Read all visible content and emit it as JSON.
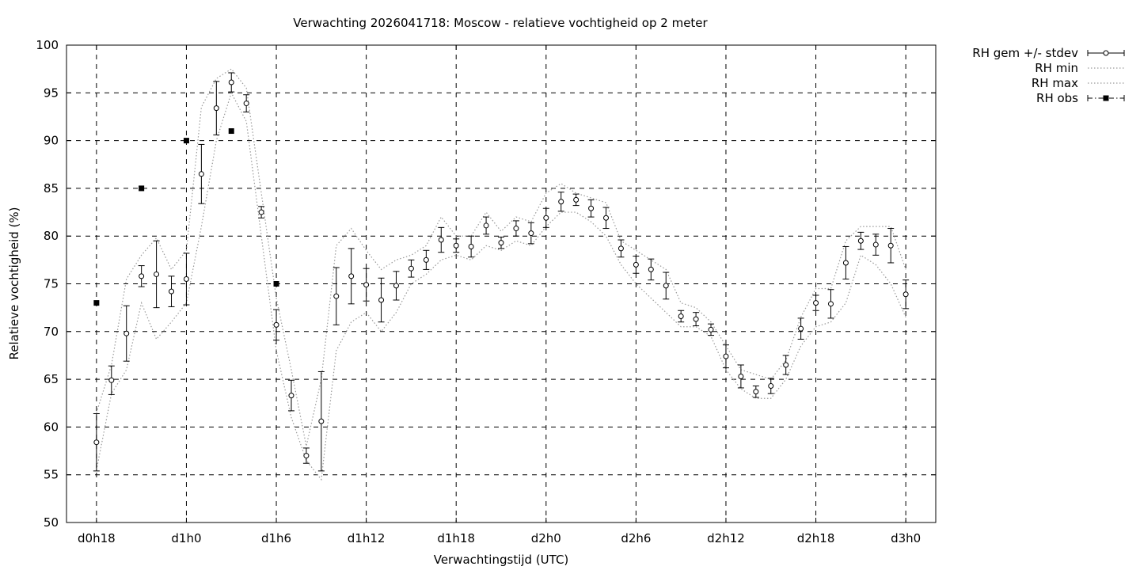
{
  "chart_data": {
    "type": "line",
    "title": "Verwachting 2026041718: Moscow - relatieve vochtigheid op 2 meter",
    "xlabel": "Verwachtingstijd (UTC)",
    "ylabel": "Relatieve vochtigheid (%)",
    "ylim": [
      50,
      100
    ],
    "xlim": [
      -2,
      56
    ],
    "x_unit": "hours since d0h18",
    "grid": true,
    "legend_position": "outside-right-top",
    "x_ticks": [
      {
        "x": 0,
        "label": "d0h18"
      },
      {
        "x": 6,
        "label": "d1h0"
      },
      {
        "x": 12,
        "label": "d1h6"
      },
      {
        "x": 18,
        "label": "d1h12"
      },
      {
        "x": 24,
        "label": "d1h18"
      },
      {
        "x": 30,
        "label": "d2h0"
      },
      {
        "x": 36,
        "label": "d2h6"
      },
      {
        "x": 42,
        "label": "d2h12"
      },
      {
        "x": 48,
        "label": "d2h18"
      },
      {
        "x": 54,
        "label": "d3h0"
      }
    ],
    "y_ticks": [
      50,
      55,
      60,
      65,
      70,
      75,
      80,
      85,
      90,
      95,
      100
    ],
    "legend": [
      {
        "label": "RH gem +/- stdev",
        "style": "errorbar-circle"
      },
      {
        "label": "RH min",
        "style": "dotted"
      },
      {
        "label": "RH max",
        "style": "dotted"
      },
      {
        "label": "RH obs",
        "style": "square-dashdot"
      }
    ],
    "series": [
      {
        "name": "RH gem +/- stdev",
        "x": [
          0,
          1,
          2,
          3,
          4,
          5,
          6,
          7,
          8,
          9,
          10,
          11,
          12,
          13,
          14,
          15,
          16,
          17,
          18,
          19,
          20,
          21,
          22,
          23,
          24,
          25,
          26,
          27,
          28,
          29,
          30,
          31,
          32,
          33,
          34,
          35,
          36,
          37,
          38,
          39,
          40,
          41,
          42,
          43,
          44,
          45,
          46,
          47,
          48,
          49,
          50,
          51,
          52,
          53,
          54
        ],
        "y": [
          58.4,
          64.9,
          69.8,
          75.8,
          76.0,
          74.2,
          75.5,
          86.5,
          93.4,
          96.1,
          93.9,
          82.5,
          70.7,
          63.3,
          57.0,
          60.6,
          73.7,
          75.8,
          74.9,
          73.3,
          74.8,
          76.6,
          77.5,
          79.6,
          79.0,
          78.9,
          81.1,
          79.3,
          80.8,
          80.3,
          81.9,
          83.6,
          83.8,
          82.9,
          81.9,
          78.7,
          77.0,
          76.5,
          74.8,
          71.6,
          71.3,
          70.2,
          67.4,
          65.3,
          63.7,
          64.3,
          66.5,
          70.3,
          73.0,
          72.9,
          77.2,
          79.5,
          79.1,
          79.0,
          73.9
        ],
        "stdev": [
          3.0,
          1.5,
          2.9,
          1.1,
          3.5,
          1.6,
          2.7,
          3.1,
          2.8,
          1.0,
          0.9,
          0.6,
          1.6,
          1.6,
          0.8,
          5.2,
          3.0,
          2.9,
          1.7,
          2.3,
          1.5,
          0.9,
          1.0,
          1.3,
          0.7,
          1.1,
          0.9,
          0.6,
          0.8,
          1.1,
          1.0,
          1.0,
          0.6,
          0.9,
          1.1,
          0.9,
          0.9,
          1.1,
          1.4,
          0.6,
          0.7,
          0.6,
          1.2,
          1.2,
          0.6,
          0.8,
          1.0,
          1.1,
          0.8,
          1.5,
          1.7,
          0.9,
          1.1,
          1.8,
          1.5
        ]
      },
      {
        "name": "RH min",
        "x": [
          0,
          1,
          2,
          3,
          4,
          5,
          6,
          7,
          8,
          9,
          10,
          11,
          12,
          13,
          14,
          15,
          16,
          17,
          18,
          19,
          20,
          21,
          22,
          23,
          24,
          25,
          26,
          27,
          28,
          29,
          30,
          31,
          32,
          33,
          34,
          35,
          36,
          37,
          38,
          39,
          40,
          41,
          42,
          43,
          44,
          45,
          46,
          47,
          48,
          49,
          50,
          51,
          52,
          53,
          54
        ],
        "y": [
          55.5,
          63.5,
          66.0,
          73.0,
          69.2,
          71.0,
          73.0,
          81.0,
          90.0,
          95.0,
          92.0,
          80.0,
          68.0,
          61.0,
          56.5,
          54.5,
          68.0,
          71.0,
          72.0,
          70.0,
          72.0,
          75.0,
          76.0,
          77.5,
          78.0,
          77.5,
          79.0,
          78.5,
          79.5,
          79.0,
          81.0,
          82.5,
          82.5,
          81.5,
          80.0,
          77.0,
          75.0,
          73.5,
          72.0,
          70.5,
          70.5,
          69.5,
          66.0,
          64.0,
          63.0,
          63.0,
          65.0,
          68.5,
          70.5,
          71.0,
          73.0,
          78.0,
          77.0,
          75.0,
          71.5
        ]
      },
      {
        "name": "RH max",
        "x": [
          0,
          1,
          2,
          3,
          4,
          5,
          6,
          7,
          8,
          9,
          10,
          11,
          12,
          13,
          14,
          15,
          16,
          17,
          18,
          19,
          20,
          21,
          22,
          23,
          24,
          25,
          26,
          27,
          28,
          29,
          30,
          31,
          32,
          33,
          34,
          35,
          36,
          37,
          38,
          39,
          40,
          41,
          42,
          43,
          44,
          45,
          46,
          47,
          48,
          49,
          50,
          51,
          52,
          53,
          54
        ],
        "y": [
          61.5,
          66.5,
          75.5,
          78.0,
          79.8,
          76.5,
          78.5,
          93.5,
          96.5,
          97.5,
          95.5,
          84.5,
          73.5,
          66.0,
          58.0,
          65.0,
          79.0,
          80.8,
          78.5,
          76.5,
          77.5,
          78.0,
          79.0,
          82.0,
          80.0,
          80.0,
          82.5,
          80.5,
          82.0,
          81.5,
          84.5,
          85.5,
          84.5,
          84.0,
          83.5,
          79.5,
          78.5,
          77.5,
          76.5,
          73.0,
          72.5,
          71.0,
          68.5,
          66.0,
          65.5,
          65.0,
          67.0,
          71.5,
          74.5,
          74.5,
          79.5,
          81.0,
          81.0,
          81.0,
          76.5
        ]
      },
      {
        "name": "RH obs",
        "x": [
          0,
          3,
          6,
          9,
          12
        ],
        "y": [
          73,
          85,
          90,
          91,
          75
        ]
      }
    ]
  }
}
